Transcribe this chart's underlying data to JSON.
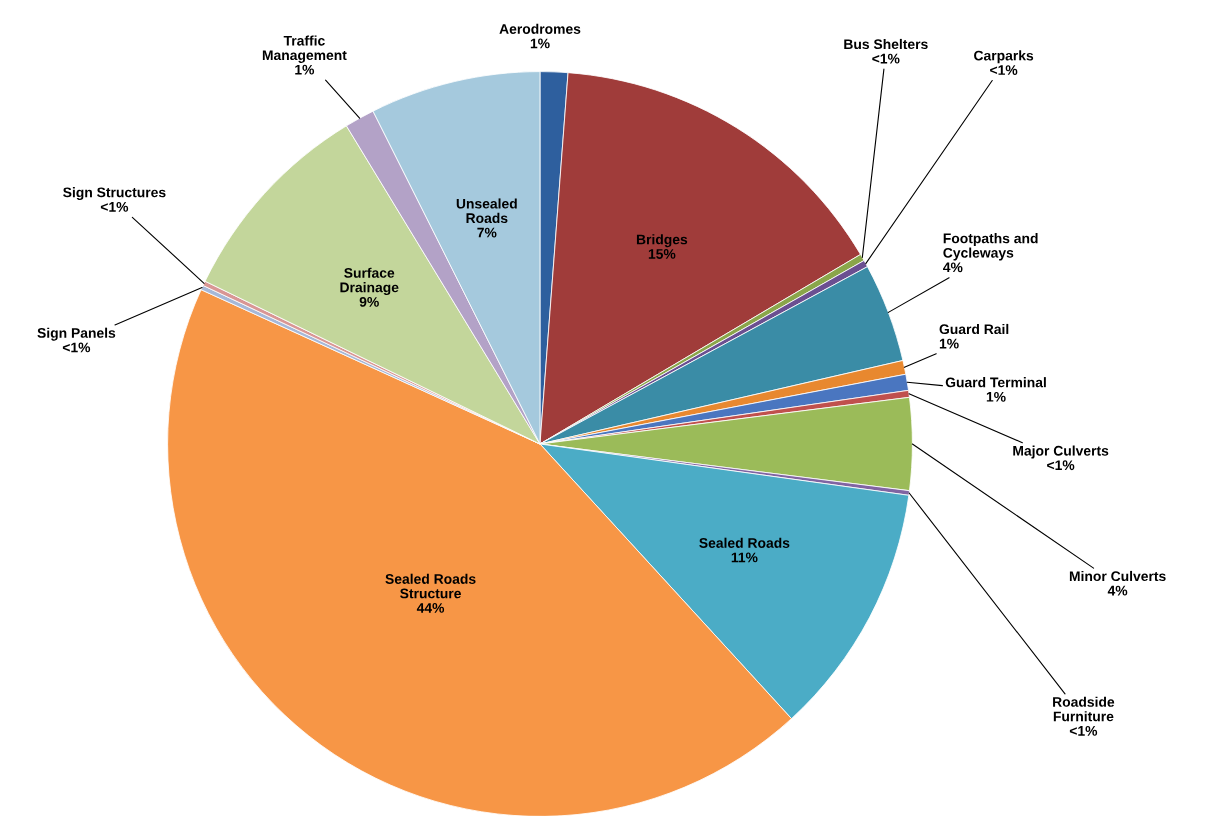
{
  "chart_data": {
    "type": "pie",
    "categories": [
      "Aerodromes",
      "Bridges",
      "Bus Shelters",
      "Carparks",
      "Footpaths and\nCycleways",
      "Guard Rail",
      "Guard Terminal",
      "Major Culverts",
      "Minor Culverts",
      "Roadside\nFurniture",
      "Sealed Roads",
      "Sealed Roads\nStructure",
      "Sign Panels",
      "Sign Structures",
      "Surface\nDrainage",
      "Traffic\nManagement",
      "Unsealed\nRoads"
    ],
    "values": [
      1.2,
      15.3,
      0.3,
      0.3,
      4.3,
      0.6,
      0.7,
      0.3,
      4.0,
      0.2,
      11.0,
      43.6,
      0.2,
      0.2,
      9.1,
      1.3,
      7.4
    ],
    "value_labels": [
      "1%",
      "15%",
      "<1%",
      "<1%",
      "4%",
      "1%",
      "1%",
      "<1%",
      "4%",
      "<1%",
      "11%",
      "44%",
      "<1%",
      "<1%",
      "9%",
      "1%",
      "7%"
    ],
    "colors": [
      "#2e5f9e",
      "#a03c3a",
      "#8aa64a",
      "#6b4f91",
      "#3a8ca6",
      "#e8882f",
      "#4a76c0",
      "#c0504d",
      "#9bbb59",
      "#8064a2",
      "#4bacc6",
      "#f79646",
      "#a6b8d8",
      "#d99694",
      "#c3d69b",
      "#b3a2c7",
      "#a5c9dd"
    ]
  }
}
